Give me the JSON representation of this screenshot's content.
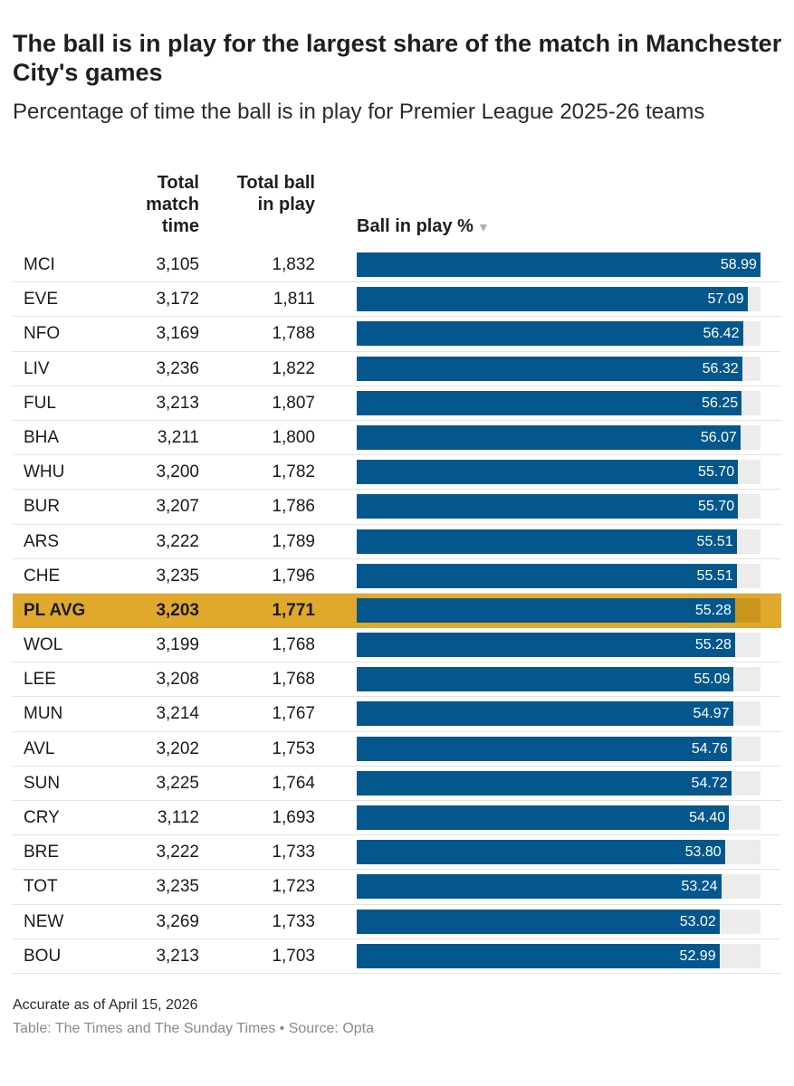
{
  "title": "The ball is in play for the largest share of the match in Manchester City's games",
  "subtitle": "Percentage of time the ball is in play for Premier League 2025-26 teams",
  "columns": {
    "match_time": "Total match time",
    "ball_in_play": "Total ball in play",
    "pct": "Ball in play %",
    "sort_icon": "▼"
  },
  "colors": {
    "bar": "#03578d",
    "track": "#ececec",
    "highlight": "#e0a92b"
  },
  "chart_data": {
    "type": "bar",
    "title": "The ball is in play for the largest share of the match in Manchester City's games",
    "subtitle": "Percentage of time the ball is in play for Premier League 2025-26 teams",
    "xlim": [
      0,
      59
    ],
    "rows": [
      {
        "team": "MCI",
        "match_time": "3,105",
        "ball_in_play": "1,832",
        "pct": 58.99,
        "label": "58.99"
      },
      {
        "team": "EVE",
        "match_time": "3,172",
        "ball_in_play": "1,811",
        "pct": 57.09,
        "label": "57.09"
      },
      {
        "team": "NFO",
        "match_time": "3,169",
        "ball_in_play": "1,788",
        "pct": 56.42,
        "label": "56.42"
      },
      {
        "team": "LIV",
        "match_time": "3,236",
        "ball_in_play": "1,822",
        "pct": 56.32,
        "label": "56.32"
      },
      {
        "team": "FUL",
        "match_time": "3,213",
        "ball_in_play": "1,807",
        "pct": 56.25,
        "label": "56.25"
      },
      {
        "team": "BHA",
        "match_time": "3,211",
        "ball_in_play": "1,800",
        "pct": 56.07,
        "label": "56.07"
      },
      {
        "team": "WHU",
        "match_time": "3,200",
        "ball_in_play": "1,782",
        "pct": 55.7,
        "label": "55.70"
      },
      {
        "team": "BUR",
        "match_time": "3,207",
        "ball_in_play": "1,786",
        "pct": 55.7,
        "label": "55.70"
      },
      {
        "team": "ARS",
        "match_time": "3,222",
        "ball_in_play": "1,789",
        "pct": 55.51,
        "label": "55.51"
      },
      {
        "team": "CHE",
        "match_time": "3,235",
        "ball_in_play": "1,796",
        "pct": 55.51,
        "label": "55.51"
      },
      {
        "team": "PL AVG",
        "match_time": "3,203",
        "ball_in_play": "1,771",
        "pct": 55.28,
        "label": "55.28",
        "highlight": true
      },
      {
        "team": "WOL",
        "match_time": "3,199",
        "ball_in_play": "1,768",
        "pct": 55.28,
        "label": "55.28"
      },
      {
        "team": "LEE",
        "match_time": "3,208",
        "ball_in_play": "1,768",
        "pct": 55.09,
        "label": "55.09"
      },
      {
        "team": "MUN",
        "match_time": "3,214",
        "ball_in_play": "1,767",
        "pct": 54.97,
        "label": "54.97"
      },
      {
        "team": "AVL",
        "match_time": "3,202",
        "ball_in_play": "1,753",
        "pct": 54.76,
        "label": "54.76"
      },
      {
        "team": "SUN",
        "match_time": "3,225",
        "ball_in_play": "1,764",
        "pct": 54.72,
        "label": "54.72"
      },
      {
        "team": "CRY",
        "match_time": "3,112",
        "ball_in_play": "1,693",
        "pct": 54.4,
        "label": "54.40"
      },
      {
        "team": "BRE",
        "match_time": "3,222",
        "ball_in_play": "1,733",
        "pct": 53.8,
        "label": "53.80"
      },
      {
        "team": "TOT",
        "match_time": "3,235",
        "ball_in_play": "1,723",
        "pct": 53.24,
        "label": "53.24"
      },
      {
        "team": "NEW",
        "match_time": "3,269",
        "ball_in_play": "1,733",
        "pct": 53.02,
        "label": "53.02"
      },
      {
        "team": "BOU",
        "match_time": "3,213",
        "ball_in_play": "1,703",
        "pct": 52.99,
        "label": "52.99"
      }
    ]
  },
  "footer": {
    "note": "Accurate as of April 15, 2026",
    "credit": "Table: The Times and The Sunday Times • Source: Opta"
  }
}
